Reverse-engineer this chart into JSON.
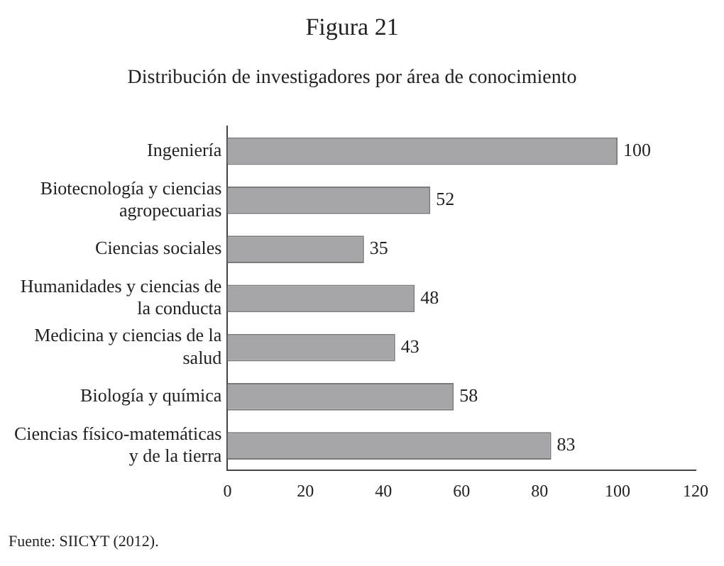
{
  "chart_data": {
    "type": "bar",
    "orientation": "horizontal",
    "title": "Figura 21",
    "subtitle": "Distribución de investigadores por área de conocimiento",
    "categories": [
      "Ingeniería",
      "Biotecnología y ciencias agropecuarias",
      "Ciencias sociales",
      "Humanidades y ciencias de la conducta",
      "Medicina y ciencias de la salud",
      "Biología y química",
      "Ciencias físico-matemáticas y de la tierra"
    ],
    "values": [
      100,
      52,
      35,
      48,
      43,
      58,
      83
    ],
    "color": "#a6a6a8",
    "data_labels": true,
    "xlim": [
      0,
      120
    ],
    "xticks": [
      0,
      20,
      40,
      60,
      80,
      100,
      120
    ],
    "grid": false,
    "legend": false,
    "annotations": [
      "Fuente: SIICYT (2012)."
    ]
  }
}
